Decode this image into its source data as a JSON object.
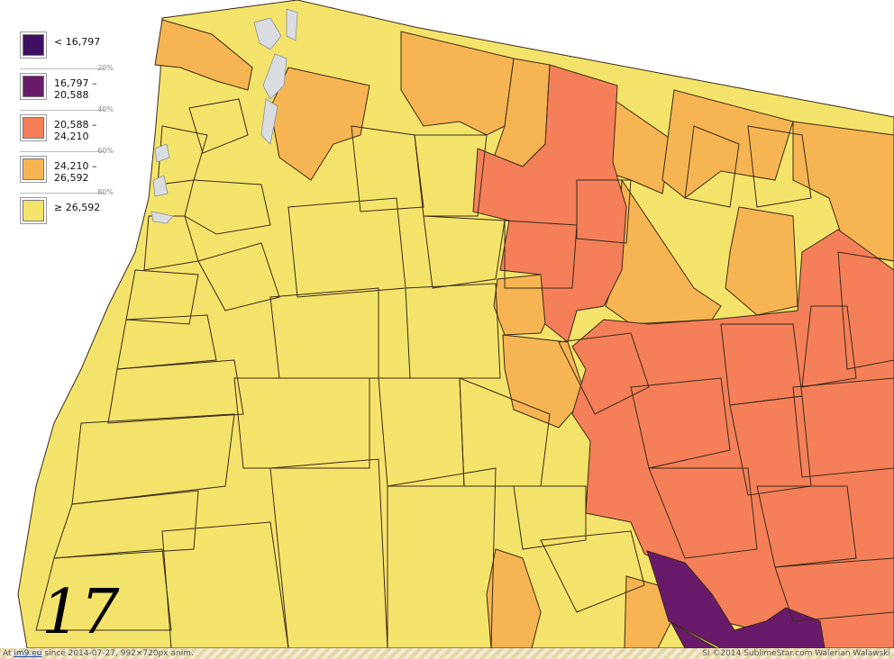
{
  "legend": {
    "items": [
      {
        "label_line1": "< 16,797",
        "label_line2": "",
        "color": "#3f0f63",
        "divider": ""
      },
      {
        "label_line1": "16,797 –",
        "label_line2": "20,588",
        "color": "#6a1a6b",
        "divider": "20%"
      },
      {
        "label_line1": "20,588 –",
        "label_line2": "24,210",
        "color": "#f47f58",
        "divider": "40%"
      },
      {
        "label_line1": "24,210 –",
        "label_line2": "26,592",
        "color": "#f6b552",
        "divider": "60%"
      },
      {
        "label_line1": "≥ 26,592",
        "label_line2": "",
        "color": "#f4e36a",
        "divider": "80%"
      }
    ]
  },
  "frame_number": "17",
  "footer": {
    "left_prefix": "At",
    "site": "im9.eu",
    "left_suffix": "since 2014-07-27, 992×720px anim.",
    "right": "SI ©2014 SublimeStar.com Walerian Walawski"
  },
  "colors": {
    "yellow": "#f4e36a",
    "light_orange": "#f6b552",
    "orange": "#f47f58",
    "purple": "#6a1a6b",
    "ocean": "#ffffff",
    "water": "#d9dde2",
    "border": "#3a2a1a"
  }
}
